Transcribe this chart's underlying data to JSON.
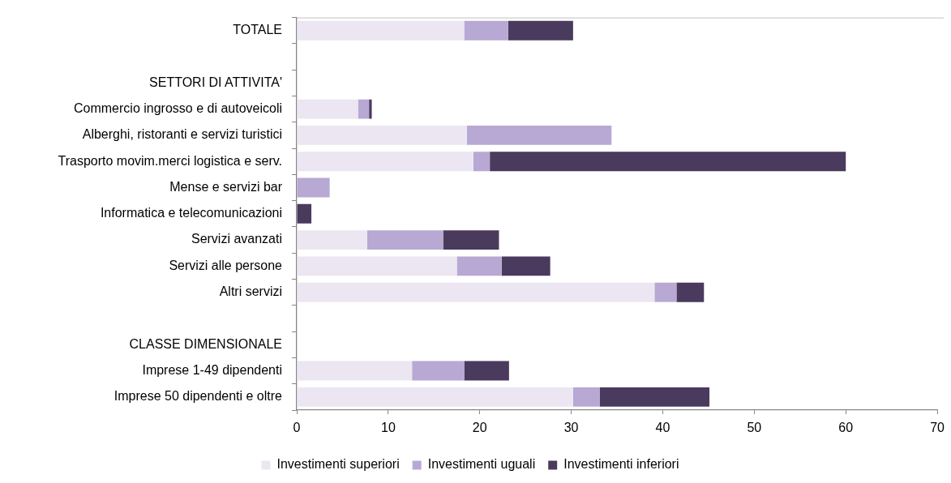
{
  "chart_data": {
    "type": "bar",
    "orientation": "horizontal",
    "stacked": true,
    "categories": [
      "TOTALE",
      null,
      "SETTORI DI ATTIVITA'",
      "Commercio ingrosso e di autoveicoli",
      "Alberghi, ristoranti e servizi turistici",
      "Trasporto movim.merci logistica e serv.",
      "Mense e servizi bar",
      "Informatica e telecomunicazioni",
      "Servizi avanzati",
      "Servizi alle persone",
      "Altri servizi",
      null,
      "CLASSE DIMENSIONALE",
      "Imprese 1-49 dipendenti",
      "Imprese 50 dipendenti e oltre"
    ],
    "series": [
      {
        "name": "Investimenti superiori",
        "color": "#ebe6f1",
        "values": [
          18.3,
          null,
          null,
          6.7,
          18.6,
          19.3,
          0,
          0,
          7.7,
          17.5,
          39.1,
          null,
          null,
          12.6,
          30.2
        ]
      },
      {
        "name": "Investimenti uguali",
        "color": "#b8a8d4",
        "values": [
          4.8,
          null,
          null,
          1.2,
          15.8,
          1.8,
          3.6,
          0,
          8.3,
          4.9,
          2.4,
          null,
          null,
          5.7,
          2.9
        ]
      },
      {
        "name": "Investimenti inferiori",
        "color": "#4a3a5e",
        "values": [
          7.1,
          null,
          null,
          0.3,
          0,
          38.9,
          0,
          1.6,
          6.1,
          5.3,
          3.0,
          null,
          null,
          4.9,
          12.0
        ]
      }
    ],
    "xlim": [
      0,
      70
    ],
    "xticks": [
      0,
      10,
      20,
      30,
      40,
      50,
      60,
      70
    ],
    "legend": "bottom"
  }
}
